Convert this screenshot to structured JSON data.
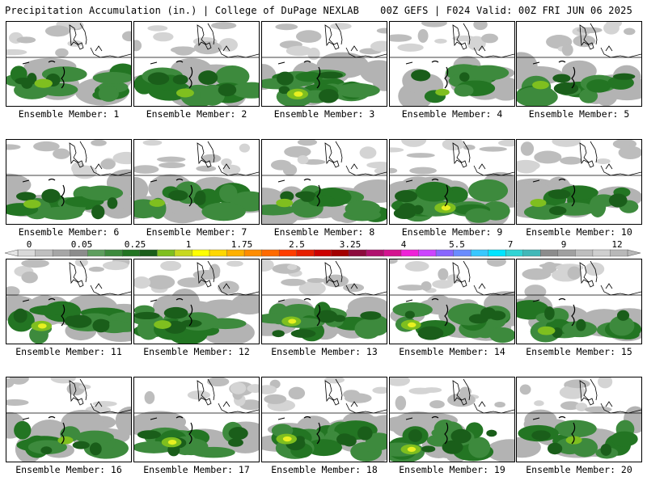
{
  "header": {
    "title": "Precipitation Accumulation (in.) | College of DuPage NEXLAB",
    "run_info": "00Z GEFS | F024 Valid: 00Z FRI JUN 06 2025"
  },
  "members": [
    {
      "label": "Ensemble Member: 1",
      "intensity": 0.65
    },
    {
      "label": "Ensemble Member: 2",
      "intensity": 0.62
    },
    {
      "label": "Ensemble Member: 3",
      "intensity": 0.9
    },
    {
      "label": "Ensemble Member: 4",
      "intensity": 0.35
    },
    {
      "label": "Ensemble Member: 5",
      "intensity": 0.55
    },
    {
      "label": "Ensemble Member: 6",
      "intensity": 0.6
    },
    {
      "label": "Ensemble Member: 7",
      "intensity": 0.45
    },
    {
      "label": "Ensemble Member: 8",
      "intensity": 0.55
    },
    {
      "label": "Ensemble Member: 9",
      "intensity": 0.9
    },
    {
      "label": "Ensemble Member: 10",
      "intensity": 0.5
    },
    {
      "label": "Ensemble Member: 11",
      "intensity": 0.85
    },
    {
      "label": "Ensemble Member: 12",
      "intensity": 0.6
    },
    {
      "label": "Ensemble Member: 13",
      "intensity": 0.75
    },
    {
      "label": "Ensemble Member: 14",
      "intensity": 0.8
    },
    {
      "label": "Ensemble Member: 15",
      "intensity": 0.6
    },
    {
      "label": "Ensemble Member: 16",
      "intensity": 0.45
    },
    {
      "label": "Ensemble Member: 17",
      "intensity": 0.8
    },
    {
      "label": "Ensemble Member: 18",
      "intensity": 0.85
    },
    {
      "label": "Ensemble Member: 19",
      "intensity": 0.8
    },
    {
      "label": "Ensemble Member: 20",
      "intensity": 0.5
    }
  ],
  "colorbar": {
    "tick_labels": [
      "0",
      "0.05",
      "0.25",
      "1",
      "1.75",
      "2.5",
      "3.25",
      "4",
      "5.5",
      "7",
      "9",
      "12"
    ],
    "colors": [
      "#d9d9d9",
      "#bfbfbf",
      "#a6a6a6",
      "#8c8c8c",
      "#5e9e5e",
      "#3d8a3d",
      "#237523",
      "#1a5e1a",
      "#7fbf1f",
      "#c8d820",
      "#ffff00",
      "#ffd700",
      "#ffb000",
      "#ff8c00",
      "#ff6a00",
      "#ff3c00",
      "#e61e00",
      "#cc0000",
      "#a30000",
      "#8c0a3c",
      "#b0106e",
      "#d4148f",
      "#ef22d8",
      "#cc44ff",
      "#8866ff",
      "#6a8cff",
      "#38c8ff",
      "#00e4ff",
      "#30d4d4",
      "#40b8b8",
      "#8c8c8c",
      "#a0a0a0",
      "#bebebe",
      "#cfcfcf",
      "#b8b8b8"
    ]
  }
}
